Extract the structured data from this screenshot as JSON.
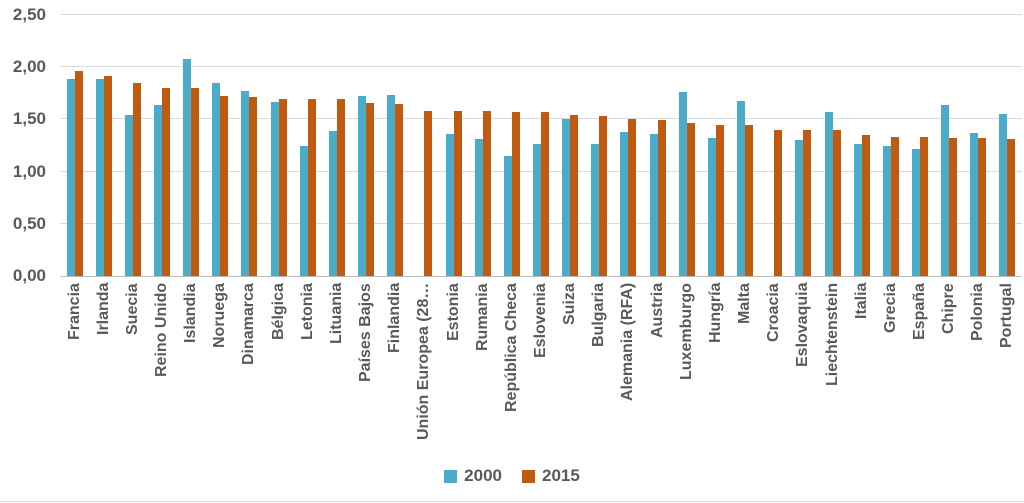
{
  "chart_data": {
    "type": "bar",
    "title": "",
    "xlabel": "",
    "ylabel": "",
    "ylim": [
      0,
      2.5
    ],
    "grid": true,
    "legend_position": "bottom",
    "decimal_format": "comma",
    "yticks": [
      {
        "label": "0,00",
        "value": 0.0
      },
      {
        "label": "0,50",
        "value": 0.5
      },
      {
        "label": "1,00",
        "value": 1.0
      },
      {
        "label": "1,50",
        "value": 1.5
      },
      {
        "label": "2,00",
        "value": 2.0
      },
      {
        "label": "2,50",
        "value": 2.5
      }
    ],
    "categories": [
      "Francia",
      "Irlanda",
      "Suecia",
      "Reino Unido",
      "Islandia",
      "Noruega",
      "Dinamarca",
      "Bélgica",
      "Letonia",
      "Lituania",
      "Países Bajos",
      "Finlandia",
      "Unión Europea (28…",
      "Estonia",
      "Rumania",
      "República Checa",
      "Eslovenia",
      "Suiza",
      "Bulgaria",
      "Alemania (RFA)",
      "Austria",
      "Luxemburgo",
      "Hungría",
      "Malta",
      "Croacia",
      "Eslovaquia",
      "Liechtenstein",
      "Italia",
      "Grecia",
      "España",
      "Chipre",
      "Polonia",
      "Portugal"
    ],
    "series": [
      {
        "name": "2000",
        "color": "#4aacc8",
        "values": [
          1.89,
          1.89,
          1.54,
          1.64,
          2.08,
          1.85,
          1.77,
          1.67,
          1.25,
          1.39,
          1.72,
          1.73,
          null,
          1.36,
          1.31,
          1.15,
          1.26,
          1.5,
          1.26,
          1.38,
          1.36,
          1.76,
          1.32,
          1.68,
          null,
          1.3,
          1.57,
          1.26,
          1.25,
          1.22,
          1.64,
          1.37,
          1.55
        ]
      },
      {
        "name": "2015",
        "color": "#c05a11",
        "values": [
          1.96,
          1.92,
          1.85,
          1.8,
          1.8,
          1.72,
          1.71,
          1.7,
          1.7,
          1.7,
          1.66,
          1.65,
          1.58,
          1.58,
          1.58,
          1.57,
          1.57,
          1.54,
          1.53,
          1.5,
          1.49,
          1.47,
          1.45,
          1.45,
          1.4,
          1.4,
          1.4,
          1.35,
          1.33,
          1.33,
          1.32,
          1.32,
          1.31
        ]
      }
    ]
  },
  "legend": {
    "items": [
      {
        "label": "2000",
        "color": "#4aacc8"
      },
      {
        "label": "2015",
        "color": "#c05a11"
      }
    ]
  },
  "colors": {
    "axis_text": "#595959",
    "gridline": "#d9d9d9",
    "baseline": "#bfbfbf",
    "background": "#ffffff"
  }
}
